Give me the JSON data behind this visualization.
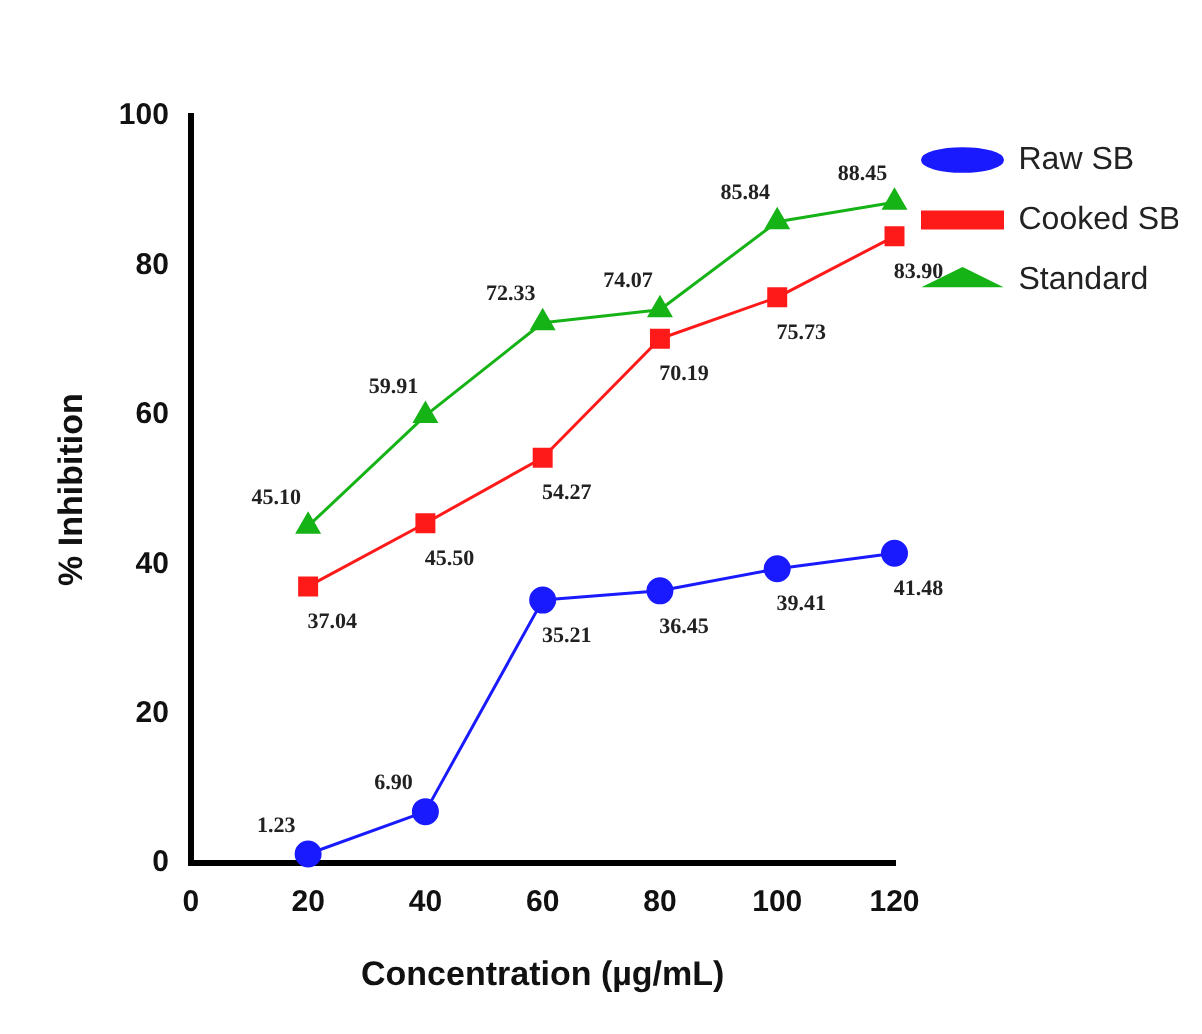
{
  "chart_data": {
    "type": "line",
    "xlabel": "Concentration (µg/mL)",
    "ylabel": "% Inhibition",
    "x": [
      20,
      40,
      60,
      80,
      100,
      120
    ],
    "xlim": [
      0,
      120
    ],
    "xticks": [
      0,
      20,
      40,
      60,
      80,
      100,
      120
    ],
    "ylim": [
      0,
      100
    ],
    "yticks": [
      0,
      20,
      40,
      60,
      80,
      100
    ],
    "grid": false,
    "legend": "right",
    "line_style": "solid",
    "series": [
      {
        "name": "Raw SB",
        "color": "#1a1aff",
        "marker": "circle",
        "values": [
          1.23,
          6.9,
          35.21,
          36.45,
          39.41,
          41.48
        ],
        "value_labels": [
          "1.23",
          "6.90",
          "35.21",
          "36.45",
          "39.41",
          "41.48"
        ]
      },
      {
        "name": "Cooked SB",
        "color": "#ff1a1a",
        "marker": "square",
        "values": [
          37.04,
          45.5,
          54.27,
          70.19,
          75.73,
          83.9
        ],
        "value_labels": [
          "37.04",
          "45.50",
          "54.27",
          "70.19",
          "75.73",
          "83.90"
        ]
      },
      {
        "name": "Standard",
        "color": "#16b316",
        "marker": "triangle",
        "values": [
          45.1,
          59.91,
          72.33,
          74.07,
          85.84,
          88.45
        ],
        "value_labels": [
          "45.10",
          "59.91",
          "72.33",
          "74.07",
          "85.84",
          "88.45"
        ]
      }
    ]
  }
}
